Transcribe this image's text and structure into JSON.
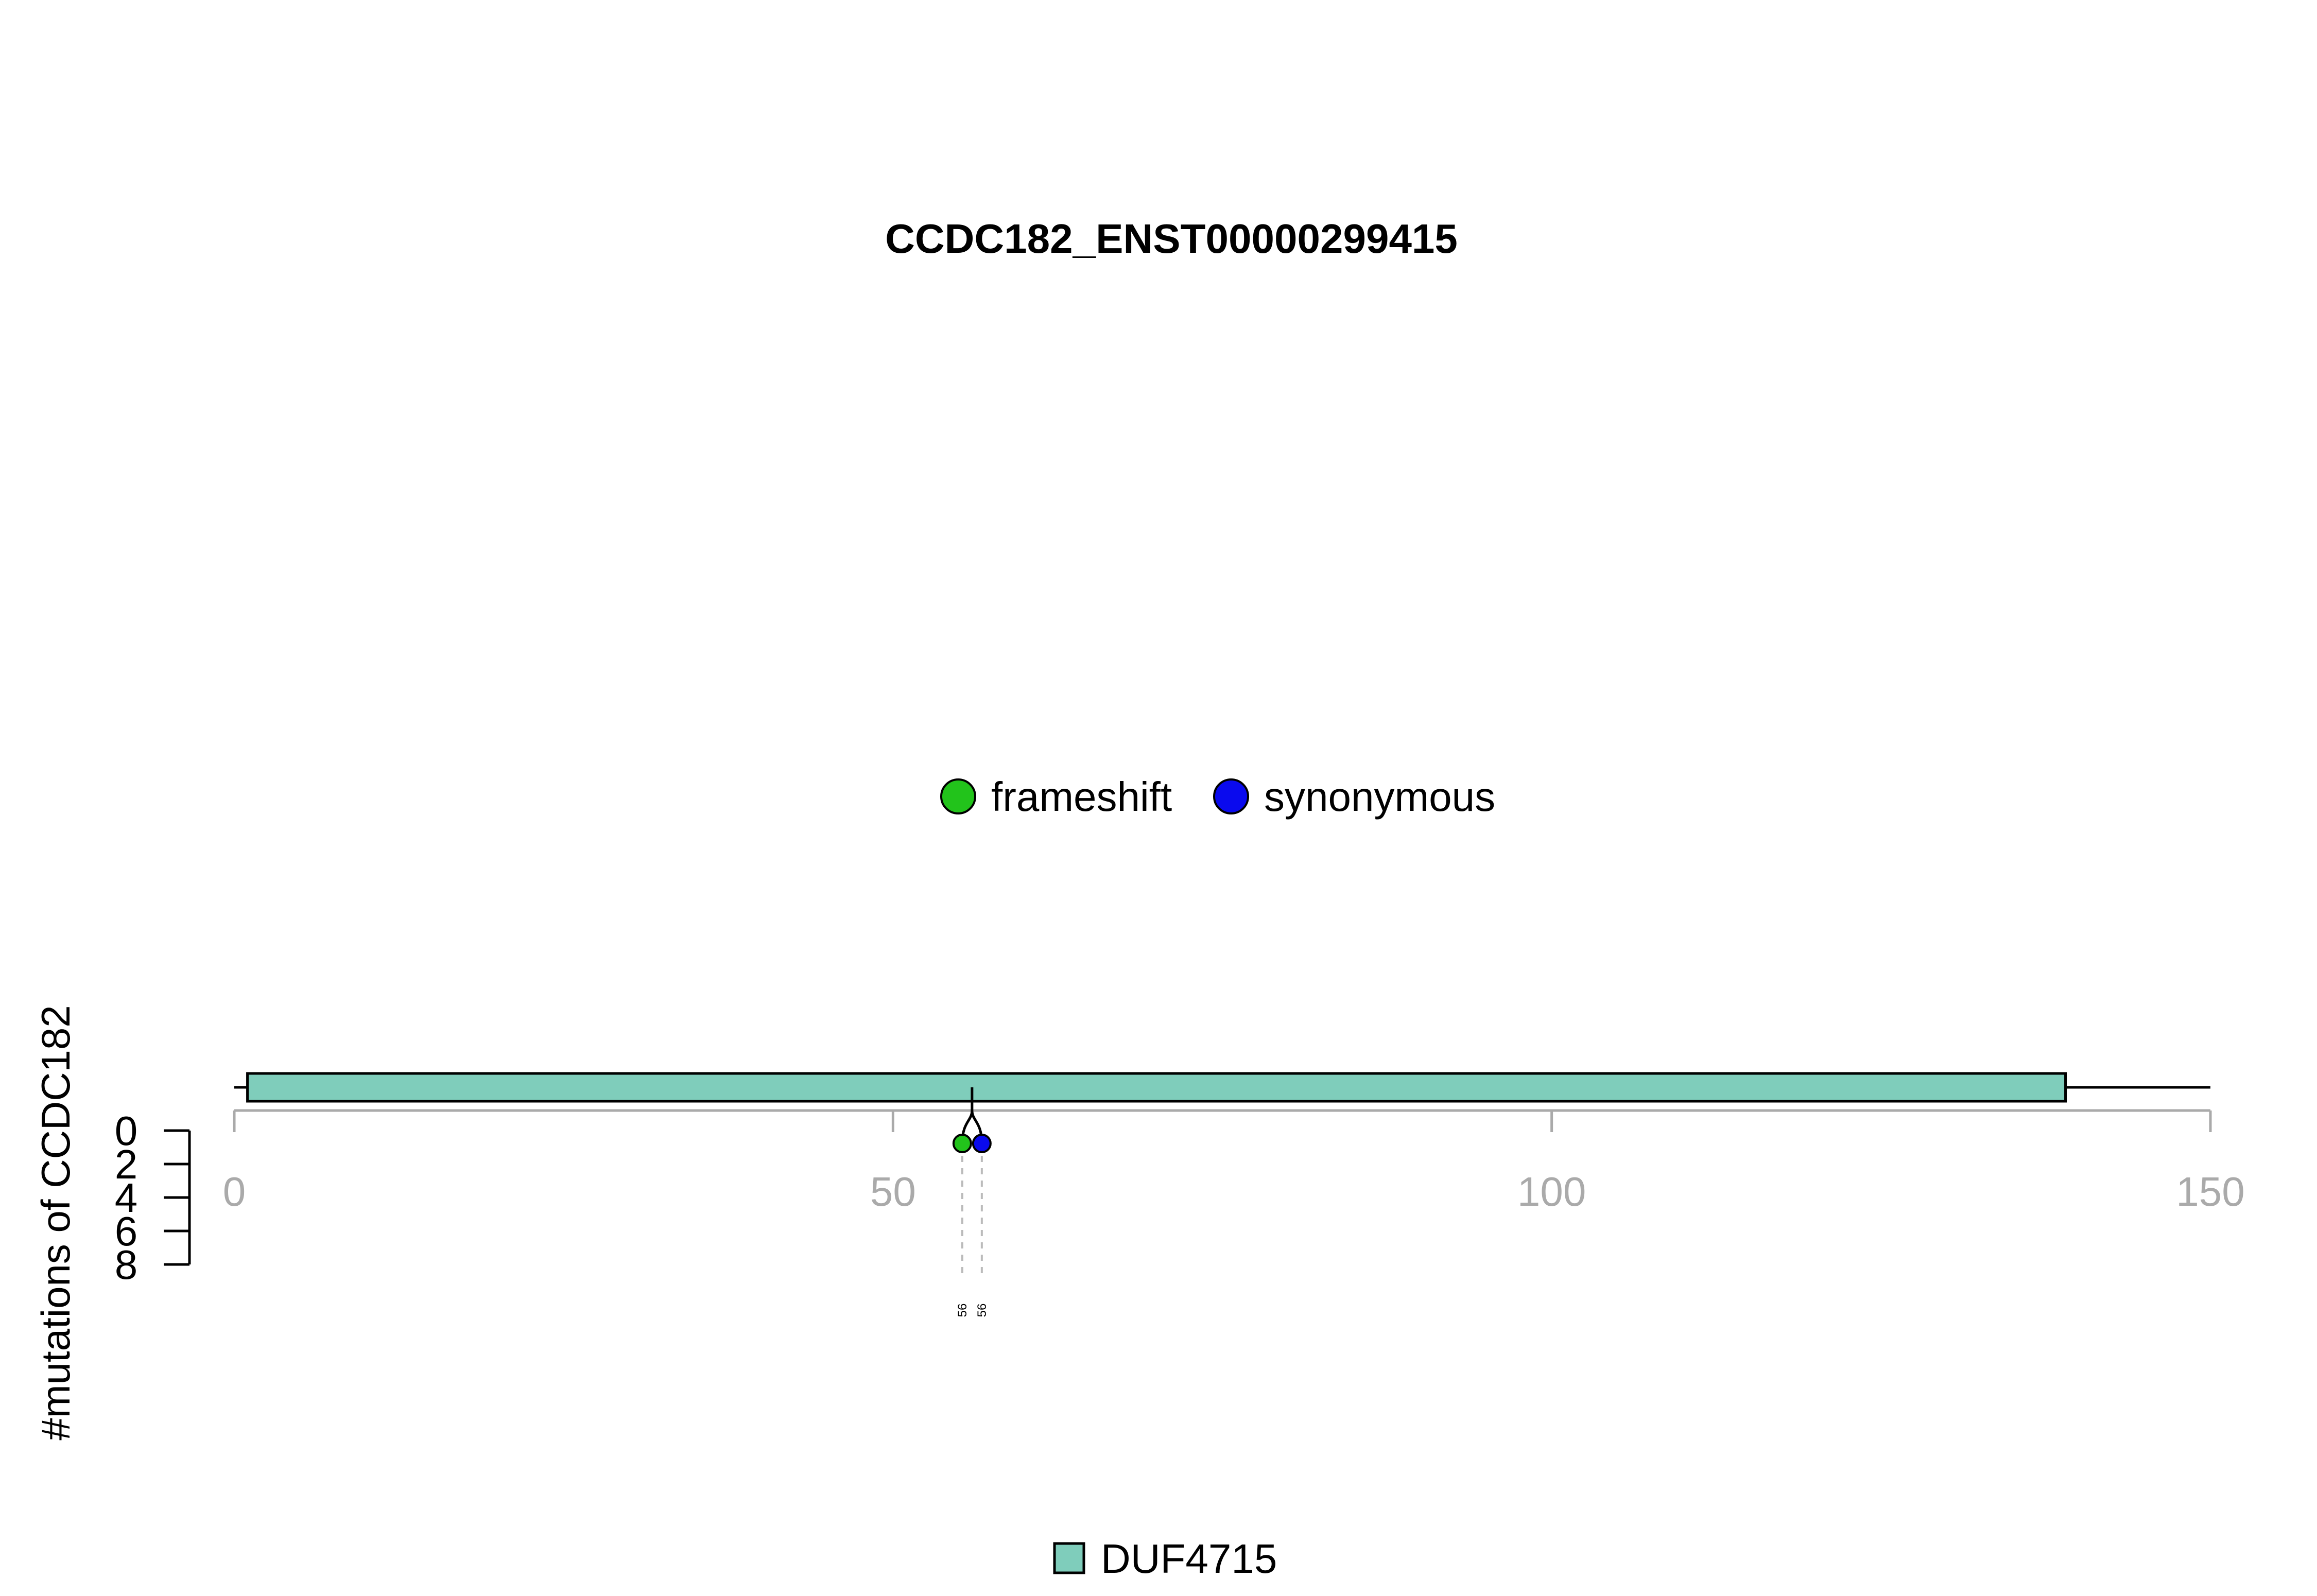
{
  "chart_data": {
    "type": "lollipop",
    "title": "CCDC182_ENST00000299415",
    "ylabel": "#mutations of CCDC182",
    "x_axis": {
      "range": [
        0,
        150
      ],
      "ticks": [
        0,
        50,
        100,
        150
      ]
    },
    "y_axis": {
      "range": [
        0,
        8
      ],
      "ticks": [
        0,
        2,
        4,
        6,
        8
      ],
      "inverted": true
    },
    "protein_length": 150,
    "domains": [
      {
        "name": "DUF4715",
        "start": 1,
        "end": 139,
        "color": "#7fcdbb"
      }
    ],
    "mutations": [
      {
        "type": "frameshift",
        "position": 56,
        "count": 1,
        "label": "56",
        "color": "#22c31b"
      },
      {
        "type": "synonymous",
        "position": 56,
        "count": 1,
        "label": "56",
        "color": "#0a0aee"
      }
    ],
    "legend": {
      "placement": "top-center",
      "entries": [
        {
          "label": "frameshift",
          "color": "#22c31b"
        },
        {
          "label": "synonymous",
          "color": "#0a0aee"
        }
      ]
    },
    "domain_legend": {
      "placement": "bottom-center",
      "entries": [
        {
          "label": "DUF4715",
          "color": "#7fcdbb"
        }
      ]
    }
  }
}
